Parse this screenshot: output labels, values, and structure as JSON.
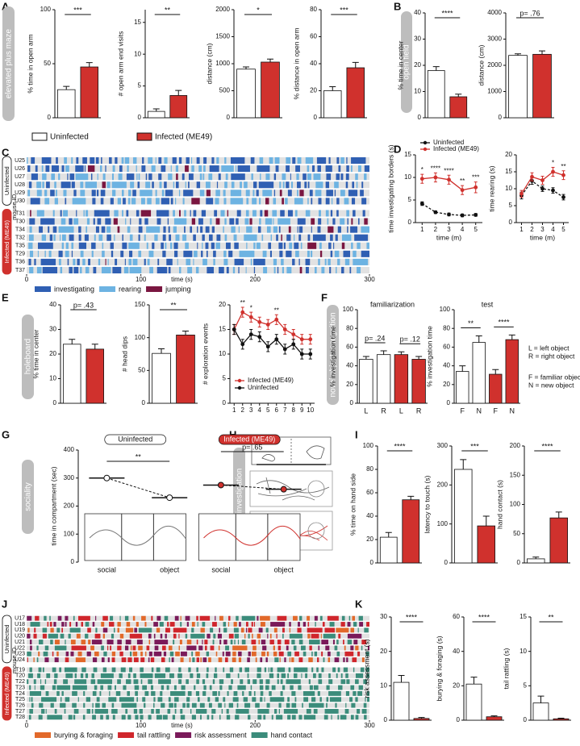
{
  "panels": [
    "A",
    "B",
    "C",
    "D",
    "E",
    "F",
    "G",
    "H",
    "I",
    "J",
    "K"
  ],
  "side_labels": {
    "A": "elevated plus maze",
    "B": "open field",
    "E": "holeboard",
    "F": "novel object recognition",
    "G": "sociality",
    "H": "hand investigation"
  },
  "legend": [
    {
      "name": "Uninfected",
      "color": "#ffffff"
    },
    {
      "name": "Infected (ME49)",
      "color": "#d0312d"
    }
  ],
  "chart_data": [
    {
      "type": "bar",
      "ylabel": "% time in open arm",
      "values": [
        26,
        47
      ],
      "errors": [
        3,
        4
      ],
      "colors": [
        "#ffffff",
        "#d0312d"
      ],
      "ylim": [
        0,
        100
      ],
      "yticks": [
        0,
        50,
        100
      ],
      "annotations": [
        "***"
      ]
    },
    {
      "type": "bar",
      "ylabel": "# open arm end visits",
      "values": [
        1,
        3.5
      ],
      "errors": [
        0.4,
        0.8
      ],
      "colors": [
        "#ffffff",
        "#d0312d"
      ],
      "ylim": [
        0,
        17
      ],
      "yticks": [
        0,
        5,
        10,
        15
      ],
      "annotations": [
        "**"
      ]
    },
    {
      "type": "bar",
      "ylabel": "distance (cm)",
      "values": [
        900,
        1030
      ],
      "errors": [
        40,
        55
      ],
      "colors": [
        "#ffffff",
        "#d0312d"
      ],
      "ylim": [
        0,
        2000
      ],
      "yticks": [
        0,
        500,
        1000,
        1500,
        2000
      ],
      "annotations": [
        "*"
      ]
    },
    {
      "type": "bar",
      "ylabel": "% distance in open arm",
      "values": [
        20,
        37
      ],
      "errors": [
        3,
        4
      ],
      "colors": [
        "#ffffff",
        "#d0312d"
      ],
      "ylim": [
        0,
        80
      ],
      "yticks": [
        0,
        20,
        40,
        60,
        80
      ],
      "annotations": [
        "***"
      ]
    },
    {
      "type": "bar",
      "ylabel": "% time in center",
      "values": [
        18,
        8
      ],
      "errors": [
        1.5,
        1
      ],
      "colors": [
        "#ffffff",
        "#d0312d"
      ],
      "ylim": [
        0,
        40
      ],
      "yticks": [
        0,
        10,
        20,
        30,
        40
      ],
      "annotations": [
        "****"
      ]
    },
    {
      "type": "bar",
      "ylabel": "distance (cm)",
      "values": [
        2380,
        2420
      ],
      "errors": [
        60,
        130
      ],
      "colors": [
        "#ffffff",
        "#d0312d"
      ],
      "ylim": [
        0,
        4000
      ],
      "yticks": [
        0,
        1000,
        2000,
        3000,
        4000
      ],
      "annotations": [
        "p= .76"
      ]
    },
    {
      "type": "ethogram",
      "ylabel": "mouse ID",
      "xlabel": "time (s)",
      "xlim": [
        0,
        300
      ],
      "xticks": [
        0,
        100,
        200,
        300
      ],
      "groups": [
        {
          "name": "Uninfected",
          "color": "#ffffff",
          "rows": [
            "U25",
            "U26",
            "U27",
            "U28",
            "U29",
            "U30"
          ]
        },
        {
          "name": "Infected (ME49)",
          "color": "#d0312d",
          "rows": [
            "T31",
            "T30",
            "T34",
            "T32",
            "T35",
            "T29",
            "T36",
            "T37"
          ]
        }
      ],
      "behaviors": [
        {
          "name": "investigating",
          "color": "#2f5fb3"
        },
        {
          "name": "rearing",
          "color": "#6db3e2"
        },
        {
          "name": "jumping",
          "color": "#7a1640"
        }
      ]
    },
    {
      "type": "line",
      "ylabel": "time investigating borders (s)",
      "xlabel": "time (m)",
      "x": [
        1,
        2,
        3,
        4,
        5
      ],
      "xlim": [
        0.5,
        5.5
      ],
      "xticks": [
        1,
        2,
        3,
        4,
        5
      ],
      "ylim": [
        0,
        15
      ],
      "yticks": [
        0,
        5,
        10,
        15
      ],
      "legend": "top",
      "series": [
        {
          "name": "Uninfected",
          "color": "#111111",
          "linestyle": "dashed",
          "values": [
            4.2,
            2.3,
            1.8,
            1.6,
            1.7
          ],
          "errors": [
            0.4,
            0.3,
            0.3,
            0.3,
            0.3
          ]
        },
        {
          "name": "Infected (ME49)",
          "color": "#d0312d",
          "linestyle": "solid",
          "values": [
            9.7,
            10,
            9.5,
            7.2,
            7.8
          ],
          "errors": [
            1,
            1,
            1,
            1,
            1.2
          ]
        }
      ],
      "annotations": [
        "*",
        "****",
        "****",
        "**",
        "***"
      ]
    },
    {
      "type": "line",
      "ylabel": "time rearing (s)",
      "xlabel": "time (m)",
      "x": [
        1,
        2,
        3,
        4,
        5
      ],
      "xlim": [
        0.5,
        5.5
      ],
      "xticks": [
        1,
        2,
        3,
        4,
        5
      ],
      "ylim": [
        0,
        20
      ],
      "yticks": [
        0,
        5,
        10,
        15,
        20
      ],
      "series": [
        {
          "name": "Uninfected",
          "color": "#111111",
          "linestyle": "dashed",
          "values": [
            8,
            12.3,
            10,
            9.5,
            7.5
          ],
          "errors": [
            1,
            1,
            0.8,
            0.8,
            0.8
          ]
        },
        {
          "name": "Infected (ME49)",
          "color": "#d0312d",
          "linestyle": "solid",
          "values": [
            8.5,
            13.5,
            12.5,
            15,
            14
          ],
          "errors": [
            1,
            1.2,
            1.2,
            1.3,
            1.3
          ]
        }
      ],
      "annotations": [
        null,
        null,
        null,
        "*",
        "**"
      ]
    },
    {
      "type": "bar",
      "ylabel": "% time in center",
      "values": [
        24,
        22
      ],
      "errors": [
        2,
        2
      ],
      "colors": [
        "#ffffff",
        "#d0312d"
      ],
      "ylim": [
        0,
        40
      ],
      "yticks": [
        0,
        10,
        20,
        30,
        40
      ],
      "annotations": [
        "p= .43"
      ]
    },
    {
      "type": "bar",
      "ylabel": "# head dips",
      "values": [
        76,
        104
      ],
      "errors": [
        7,
        6
      ],
      "colors": [
        "#ffffff",
        "#d0312d"
      ],
      "ylim": [
        0,
        150
      ],
      "yticks": [
        0,
        50,
        100,
        150
      ],
      "annotations": [
        "**"
      ]
    },
    {
      "type": "line",
      "ylabel": "# exploration events",
      "x": [
        1,
        2,
        3,
        4,
        5,
        6,
        7,
        8,
        9,
        10
      ],
      "xlim": [
        0.5,
        10.5
      ],
      "xticks": [
        1,
        2,
        3,
        4,
        5,
        6,
        7,
        8,
        9,
        10
      ],
      "ylim": [
        0,
        20
      ],
      "yticks": [
        0,
        5,
        10,
        15,
        20
      ],
      "legend": "lower left",
      "series": [
        {
          "name": "Infected (ME49)",
          "color": "#d0312d",
          "linestyle": "solid",
          "values": [
            15,
            18.5,
            17.5,
            16.5,
            16,
            17,
            15,
            14,
            13,
            13
          ],
          "errors": [
            1,
            1,
            1,
            1,
            1,
            1,
            1,
            1,
            1,
            1
          ]
        },
        {
          "name": "Uninfected",
          "color": "#111111",
          "linestyle": "solid",
          "values": [
            15,
            12,
            14,
            13.5,
            11.5,
            13,
            11,
            12,
            10,
            10
          ],
          "errors": [
            1,
            1,
            1,
            1,
            1,
            1,
            1,
            1,
            1,
            1
          ]
        }
      ],
      "annotations": [
        null,
        "**",
        "*",
        null,
        null,
        "**",
        null,
        null,
        null,
        null
      ]
    },
    {
      "type": "bar",
      "title": "familiarization",
      "ylabel": "% investigation time",
      "categories": [
        "L",
        "R",
        "L",
        "R"
      ],
      "values": [
        47,
        52,
        52,
        47
      ],
      "errors": [
        3,
        4,
        3,
        3
      ],
      "colors": [
        "#ffffff",
        "#ffffff",
        "#d0312d",
        "#d0312d"
      ],
      "ylim": [
        0,
        100
      ],
      "yticks": [
        0,
        20,
        40,
        60,
        80,
        100
      ],
      "annotations": [
        "p= .24",
        "p= .12"
      ]
    },
    {
      "type": "bar",
      "title": "test",
      "ylabel": "% investigation time",
      "categories": [
        "F",
        "N",
        "F",
        "N"
      ],
      "values": [
        34,
        65,
        31,
        68
      ],
      "errors": [
        6,
        7,
        5,
        5
      ],
      "colors": [
        "#ffffff",
        "#ffffff",
        "#d0312d",
        "#d0312d"
      ],
      "ylim": [
        0,
        100
      ],
      "yticks": [
        0,
        20,
        40,
        60,
        80,
        100
      ],
      "annotations": [
        "**",
        "****"
      ],
      "notes": [
        "L = left object",
        "R = right object",
        "F = familiar object",
        "N = new object"
      ]
    },
    {
      "type": "paired",
      "ylabel": "time in compartment (sec)",
      "categories": [
        "social",
        "object"
      ],
      "ylim": [
        0,
        400
      ],
      "yticks": [
        0,
        100,
        200,
        300,
        400
      ],
      "series": [
        {
          "name": "Uninfected",
          "color": "#ffffff",
          "values": [
            300,
            230
          ]
        },
        {
          "name": "Infected (ME49)",
          "color": "#d0312d",
          "values": [
            275,
            260
          ]
        }
      ],
      "annotations": [
        "**",
        "p= .65"
      ]
    },
    {
      "type": "bar",
      "ylabel": "% time on hand side",
      "values": [
        22,
        54
      ],
      "errors": [
        4,
        3
      ],
      "colors": [
        "#ffffff",
        "#d0312d"
      ],
      "ylim": [
        0,
        100
      ],
      "yticks": [
        0,
        20,
        40,
        60,
        80,
        100
      ],
      "annotations": [
        "****"
      ]
    },
    {
      "type": "bar",
      "ylabel": "latency to touch (s)",
      "values": [
        240,
        95
      ],
      "errors": [
        25,
        25
      ],
      "colors": [
        "#ffffff",
        "#d0312d"
      ],
      "ylim": [
        0,
        300
      ],
      "yticks": [
        0,
        100,
        200,
        300
      ],
      "annotations": [
        "***"
      ]
    },
    {
      "type": "bar",
      "ylabel": "hand contact (s)",
      "values": [
        7,
        77
      ],
      "errors": [
        3,
        10
      ],
      "colors": [
        "#ffffff",
        "#d0312d"
      ],
      "ylim": [
        0,
        200
      ],
      "yticks": [
        0,
        50,
        100,
        150,
        200
      ],
      "annotations": [
        "****"
      ]
    },
    {
      "type": "ethogram",
      "ylabel": "mouse ID",
      "xlabel": "time (s)",
      "xlim": [
        0,
        300
      ],
      "xticks": [
        0,
        100,
        200,
        300
      ],
      "groups": [
        {
          "name": "Uninfected",
          "color": "#ffffff",
          "rows": [
            "U17",
            "U18",
            "U19",
            "U20",
            "U21",
            "U22",
            "U23",
            "U24"
          ]
        },
        {
          "name": "Infected (ME49)",
          "color": "#d0312d",
          "rows": [
            "T19",
            "T20",
            "T22",
            "T23",
            "T24",
            "T25",
            "T26",
            "T27",
            "T28"
          ]
        }
      ],
      "behaviors": [
        {
          "name": "burying & foraging",
          "color": "#e2692a"
        },
        {
          "name": "tail rattling",
          "color": "#d0262c"
        },
        {
          "name": "risk assessment",
          "color": "#7a1a5a"
        },
        {
          "name": "hand contact",
          "color": "#3b8c7b"
        }
      ]
    },
    {
      "type": "bar",
      "ylabel": "risk assessment (s)",
      "values": [
        11,
        0.5
      ],
      "errors": [
        2,
        0.3
      ],
      "colors": [
        "#ffffff",
        "#d0312d"
      ],
      "ylim": [
        0,
        30
      ],
      "yticks": [
        0,
        10,
        20,
        30
      ],
      "annotations": [
        "****"
      ]
    },
    {
      "type": "bar",
      "ylabel": "burying & foraging (s)",
      "values": [
        21,
        2
      ],
      "errors": [
        4,
        0.5
      ],
      "colors": [
        "#ffffff",
        "#d0312d"
      ],
      "ylim": [
        0,
        60
      ],
      "yticks": [
        0,
        20,
        40,
        60
      ],
      "annotations": [
        "****"
      ]
    },
    {
      "type": "bar",
      "ylabel": "tail rattling (s)",
      "values": [
        2.5,
        0.2
      ],
      "errors": [
        1,
        0.1
      ],
      "colors": [
        "#ffffff",
        "#d0312d"
      ],
      "ylim": [
        0,
        15
      ],
      "yticks": [
        0,
        5,
        10,
        15
      ],
      "annotations": [
        "**"
      ]
    }
  ]
}
